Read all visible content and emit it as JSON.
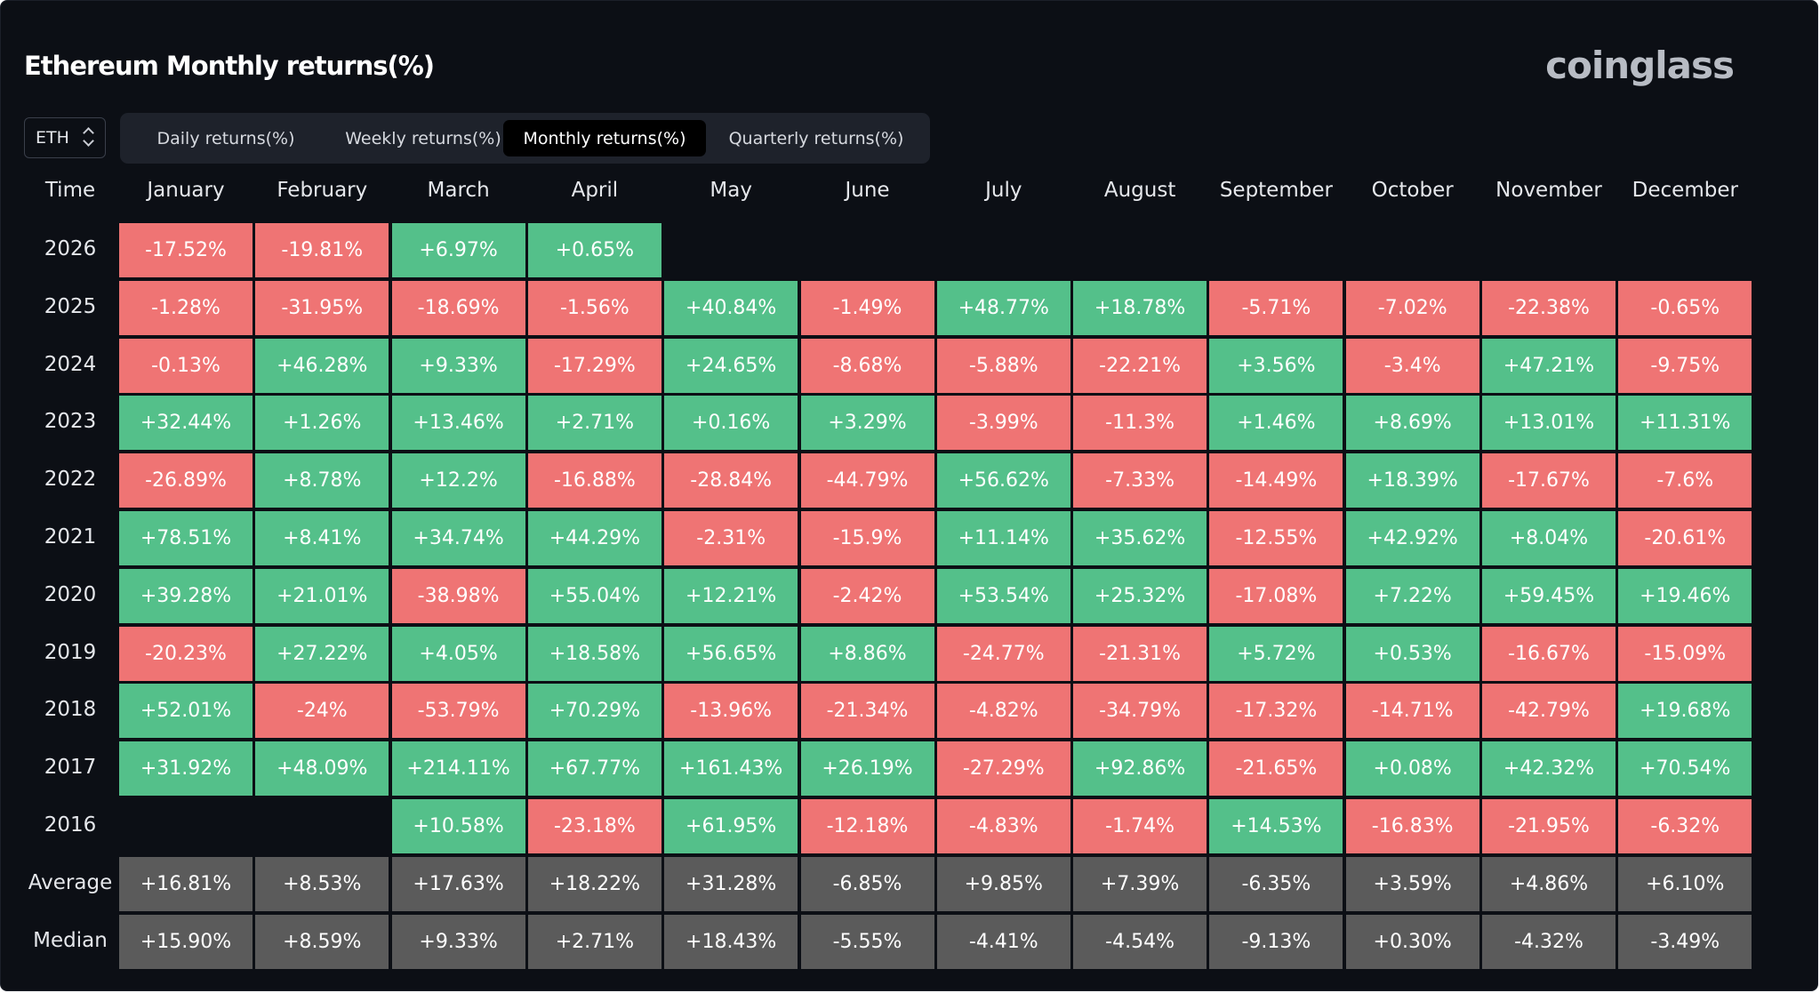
{
  "header": {
    "title": "Ethereum Monthly returns(%)",
    "logo": "coinglass"
  },
  "symbol_select": {
    "value": "ETH"
  },
  "tabs": [
    {
      "label": "Daily returns(%)",
      "active": false
    },
    {
      "label": "Weekly returns(%)",
      "active": false
    },
    {
      "label": "Monthly returns(%)",
      "active": true
    },
    {
      "label": "Quarterly returns(%)",
      "active": false
    }
  ],
  "colors": {
    "positive": "#54c08a",
    "negative": "#ef7474",
    "summary": "#5b5b5b",
    "background": "#0c0f15"
  },
  "table": {
    "corner": "Time",
    "months": [
      "January",
      "February",
      "March",
      "April",
      "May",
      "June",
      "July",
      "August",
      "September",
      "October",
      "November",
      "December"
    ],
    "rows": [
      {
        "label": "2026",
        "values": [
          "-17.52%",
          "-19.81%",
          "+6.97%",
          "+0.65%",
          null,
          null,
          null,
          null,
          null,
          null,
          null,
          null
        ]
      },
      {
        "label": "2025",
        "values": [
          "-1.28%",
          "-31.95%",
          "-18.69%",
          "-1.56%",
          "+40.84%",
          "-1.49%",
          "+48.77%",
          "+18.78%",
          "-5.71%",
          "-7.02%",
          "-22.38%",
          "-0.65%"
        ]
      },
      {
        "label": "2024",
        "values": [
          "-0.13%",
          "+46.28%",
          "+9.33%",
          "-17.29%",
          "+24.65%",
          "-8.68%",
          "-5.88%",
          "-22.21%",
          "+3.56%",
          "-3.4%",
          "+47.21%",
          "-9.75%"
        ]
      },
      {
        "label": "2023",
        "values": [
          "+32.44%",
          "+1.26%",
          "+13.46%",
          "+2.71%",
          "+0.16%",
          "+3.29%",
          "-3.99%",
          "-11.3%",
          "+1.46%",
          "+8.69%",
          "+13.01%",
          "+11.31%"
        ]
      },
      {
        "label": "2022",
        "values": [
          "-26.89%",
          "+8.78%",
          "+12.2%",
          "-16.88%",
          "-28.84%",
          "-44.79%",
          "+56.62%",
          "-7.33%",
          "-14.49%",
          "+18.39%",
          "-17.67%",
          "-7.6%"
        ]
      },
      {
        "label": "2021",
        "values": [
          "+78.51%",
          "+8.41%",
          "+34.74%",
          "+44.29%",
          "-2.31%",
          "-15.9%",
          "+11.14%",
          "+35.62%",
          "-12.55%",
          "+42.92%",
          "+8.04%",
          "-20.61%"
        ]
      },
      {
        "label": "2020",
        "values": [
          "+39.28%",
          "+21.01%",
          "-38.98%",
          "+55.04%",
          "+12.21%",
          "-2.42%",
          "+53.54%",
          "+25.32%",
          "-17.08%",
          "+7.22%",
          "+59.45%",
          "+19.46%"
        ]
      },
      {
        "label": "2019",
        "values": [
          "-20.23%",
          "+27.22%",
          "+4.05%",
          "+18.58%",
          "+56.65%",
          "+8.86%",
          "-24.77%",
          "-21.31%",
          "+5.72%",
          "+0.53%",
          "-16.67%",
          "-15.09%"
        ]
      },
      {
        "label": "2018",
        "values": [
          "+52.01%",
          "-24%",
          "-53.79%",
          "+70.29%",
          "-13.96%",
          "-21.34%",
          "-4.82%",
          "-34.79%",
          "-17.32%",
          "-14.71%",
          "-42.79%",
          "+19.68%"
        ]
      },
      {
        "label": "2017",
        "values": [
          "+31.92%",
          "+48.09%",
          "+214.11%",
          "+67.77%",
          "+161.43%",
          "+26.19%",
          "-27.29%",
          "+92.86%",
          "-21.65%",
          "+0.08%",
          "+42.32%",
          "+70.54%"
        ]
      },
      {
        "label": "2016",
        "values": [
          null,
          null,
          "+10.58%",
          "-23.18%",
          "+61.95%",
          "-12.18%",
          "-4.83%",
          "-1.74%",
          "+14.53%",
          "-16.83%",
          "-21.95%",
          "-6.32%"
        ]
      },
      {
        "label": "Average",
        "summary": true,
        "values": [
          "+16.81%",
          "+8.53%",
          "+17.63%",
          "+18.22%",
          "+31.28%",
          "-6.85%",
          "+9.85%",
          "+7.39%",
          "-6.35%",
          "+3.59%",
          "+4.86%",
          "+6.10%"
        ]
      },
      {
        "label": "Median",
        "summary": true,
        "values": [
          "+15.90%",
          "+8.59%",
          "+9.33%",
          "+2.71%",
          "+18.43%",
          "-5.55%",
          "-4.41%",
          "-4.54%",
          "-9.13%",
          "+0.30%",
          "-4.32%",
          "-3.49%"
        ]
      }
    ]
  }
}
